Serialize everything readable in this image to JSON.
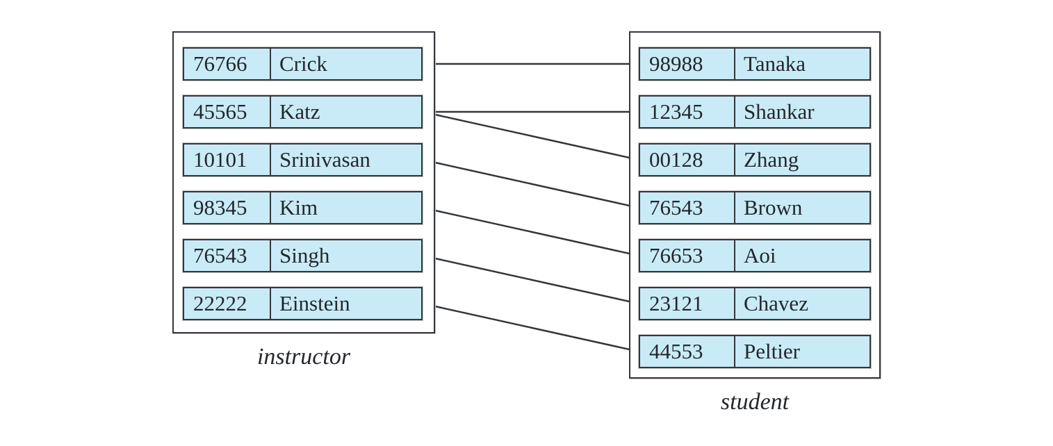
{
  "colors": {
    "background": "#ffffff",
    "cell_fill": "#c9ebf8",
    "cell_border": "#33373c",
    "box_border": "#33373c",
    "line": "#33373c",
    "text": "#24272b"
  },
  "instructor": {
    "label": "instructor",
    "rows": [
      {
        "id": "76766",
        "name": "Crick"
      },
      {
        "id": "45565",
        "name": "Katz"
      },
      {
        "id": "10101",
        "name": "Srinivasan"
      },
      {
        "id": "98345",
        "name": "Kim"
      },
      {
        "id": "76543",
        "name": "Singh"
      },
      {
        "id": "22222",
        "name": "Einstein"
      }
    ]
  },
  "student": {
    "label": "student",
    "rows": [
      {
        "id": "98988",
        "name": "Tanaka"
      },
      {
        "id": "12345",
        "name": "Shankar"
      },
      {
        "id": "00128",
        "name": "Zhang"
      },
      {
        "id": "76543",
        "name": "Brown"
      },
      {
        "id": "76653",
        "name": "Aoi"
      },
      {
        "id": "23121",
        "name": "Chavez"
      },
      {
        "id": "44553",
        "name": "Peltier"
      }
    ]
  },
  "links": [
    {
      "from": "76766",
      "to": "98988"
    },
    {
      "from": "45565",
      "to": "12345"
    },
    {
      "from": "45565",
      "to": "00128"
    },
    {
      "from": "10101",
      "to": "76543"
    },
    {
      "from": "98345",
      "to": "76653"
    },
    {
      "from": "76543",
      "to": "23121"
    },
    {
      "from": "22222",
      "to": "44553"
    }
  ]
}
